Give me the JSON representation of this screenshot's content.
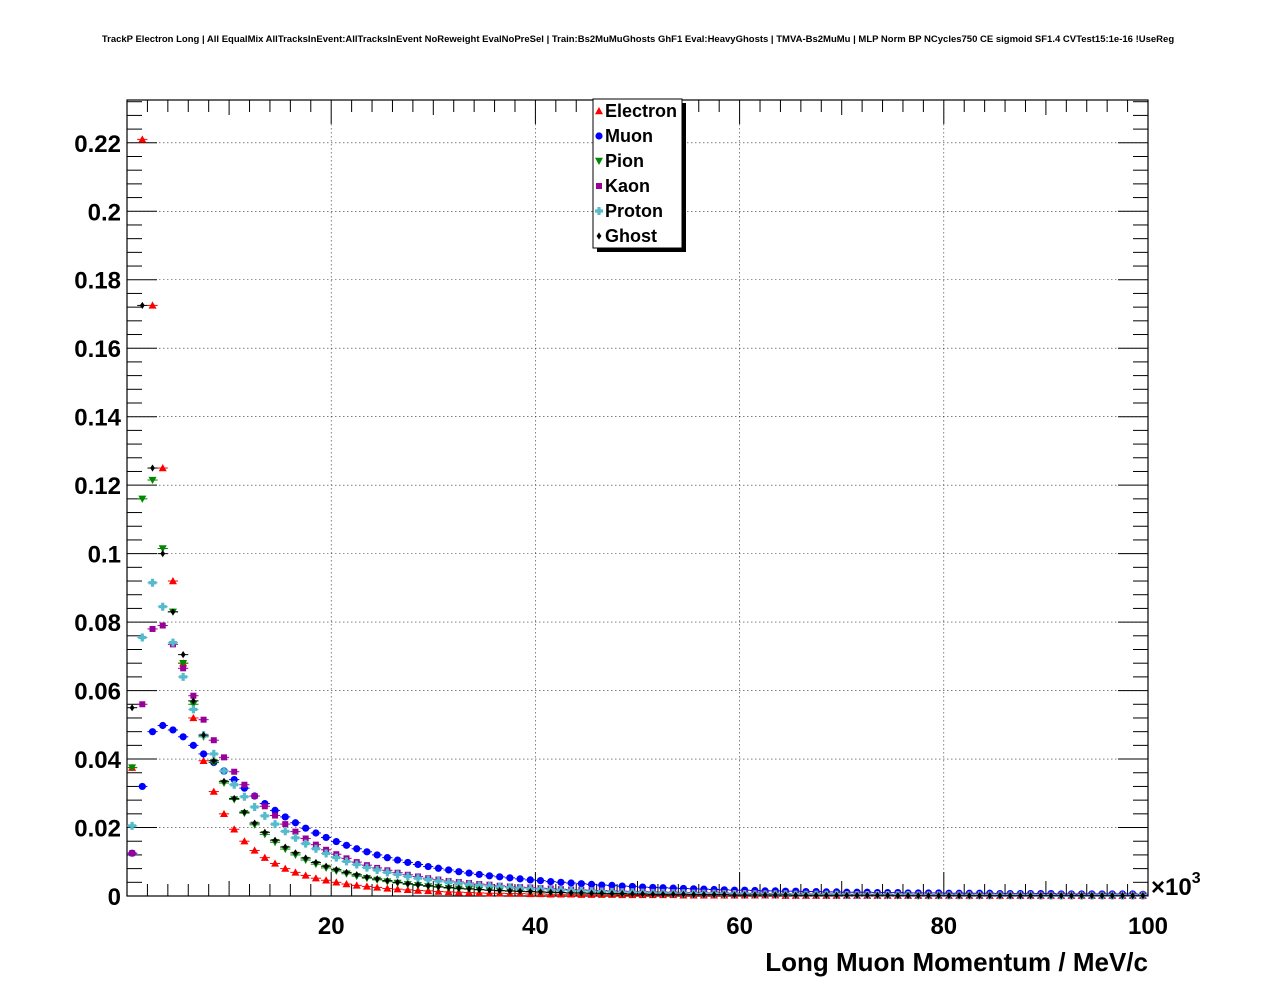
{
  "chart_data": {
    "type": "scatter",
    "title": "TrackP Electron Long | All EqualMix AllTracksInEvent:AllTracksInEvent NoReweight EvalNoPreSel | Train:Bs2MuMuGhosts GhF1 Eval:HeavyGhosts | TMVA-Bs2MuMu | MLP Norm BP NCycles750 CE sigmoid SF1.4 CVTest15:1e-16 !UseReg",
    "xlabel": "Long Muon Momentum / MeV/c",
    "ylabel": "",
    "x_multiplier_label": "×10",
    "x_multiplier_exp": "3",
    "xlim": [
      0,
      100
    ],
    "ylim": [
      0,
      0.2325
    ],
    "x_ticks": [
      20,
      40,
      60,
      80,
      100
    ],
    "x_tick_labels": [
      "20",
      "40",
      "60",
      "80",
      "100"
    ],
    "y_ticks": [
      0,
      0.02,
      0.04,
      0.06,
      0.08,
      0.1,
      0.12,
      0.14,
      0.16,
      0.18,
      0.2,
      0.22
    ],
    "y_tick_labels": [
      "0",
      "0.02",
      "0.04",
      "0.06",
      "0.08",
      "0.1",
      "0.12",
      "0.14",
      "0.16",
      "0.18",
      "0.2",
      "0.22"
    ],
    "grid": true,
    "legend_position": "top-center",
    "x": [
      0.5,
      1.5,
      2.5,
      3.5,
      4.5,
      5.5,
      6.5,
      7.5,
      8.5,
      9.5,
      10.5,
      11.5,
      12.5,
      13.5,
      14.5,
      15.5,
      16.5,
      17.5,
      18.5,
      19.5,
      20.5,
      21.5,
      22.5,
      23.5,
      24.5,
      25.5,
      26.5,
      27.5,
      28.5,
      29.5,
      30.5,
      31.5,
      32.5,
      33.5,
      34.5,
      35.5,
      36.5,
      37.5,
      38.5,
      39.5,
      40.5,
      41.5,
      42.5,
      43.5,
      44.5,
      45.5,
      46.5,
      47.5,
      48.5,
      49.5,
      50.5,
      51.5,
      52.5,
      53.5,
      54.5,
      55.5,
      56.5,
      57.5,
      58.5,
      59.5,
      60.5,
      61.5,
      62.5,
      63.5,
      64.5,
      65.5,
      66.5,
      67.5,
      68.5,
      69.5,
      70.5,
      71.5,
      72.5,
      73.5,
      74.5,
      75.5,
      76.5,
      77.5,
      78.5,
      79.5,
      80.5,
      81.5,
      82.5,
      83.5,
      84.5,
      85.5,
      86.5,
      87.5,
      88.5,
      89.5,
      90.5,
      91.5,
      92.5,
      93.5,
      94.5,
      95.5,
      96.5,
      97.5,
      98.5,
      99.5
    ],
    "series": [
      {
        "name": "Electron",
        "color": "#ff0000",
        "marker": "triangle-up",
        "values": [
          0.0375,
          0.221,
          0.1725,
          0.125,
          0.092,
          0.068,
          0.052,
          0.0395,
          0.0305,
          0.024,
          0.0195,
          0.016,
          0.0133,
          0.0112,
          0.0095,
          0.008,
          0.0069,
          0.006,
          0.0052,
          0.0046,
          0.004,
          0.0035,
          0.0031,
          0.0028,
          0.0025,
          0.0022,
          0.002,
          0.0018,
          0.0016,
          0.0015,
          0.0013,
          0.0012,
          0.0011,
          0.001,
          0.0009,
          0.0008,
          0.0008,
          0.0007,
          0.0007,
          0.0006,
          0.0006,
          0.0005,
          0.0005,
          0.0005,
          0.0004,
          0.0004,
          0.0004,
          0.0004,
          0.0003,
          0.0003,
          0.0003,
          0.0003,
          0.0003,
          0.0003,
          0.0002,
          0.0002,
          0.0002,
          0.0002,
          0.0002,
          0.0002,
          0.0002,
          0.0002,
          0.0002,
          0.0002,
          0.0001,
          0.0001,
          0.0001,
          0.0001,
          0.0001,
          0.0001,
          0.0001,
          0.0001,
          0.0001,
          0.0001,
          0.0001,
          0.0001,
          0.0001,
          0.0001,
          0.0001,
          0.0001,
          0.0001,
          0.0001,
          0.0001,
          0.0001,
          0.0001,
          0.0001,
          0.0001,
          0.0001,
          0.0001,
          0.0001,
          0.0001,
          0.0001,
          0.0001,
          0.0001,
          0.0001,
          0.0001,
          0.0001,
          0.0001,
          0.0001,
          0.0001
        ]
      },
      {
        "name": "Muon",
        "color": "#0000ff",
        "marker": "circle",
        "values": [
          0.0125,
          0.032,
          0.048,
          0.0498,
          0.0485,
          0.0465,
          0.044,
          0.0415,
          0.039,
          0.0365,
          0.034,
          0.0315,
          0.0292,
          0.027,
          0.025,
          0.0231,
          0.0214,
          0.0198,
          0.0184,
          0.0171,
          0.0159,
          0.0148,
          0.0138,
          0.0129,
          0.012,
          0.0112,
          0.0105,
          0.0098,
          0.0092,
          0.0086,
          0.0081,
          0.0076,
          0.0071,
          0.0067,
          0.0063,
          0.0059,
          0.0056,
          0.0053,
          0.005,
          0.0047,
          0.0045,
          0.0042,
          0.004,
          0.0038,
          0.0036,
          0.0034,
          0.0032,
          0.0031,
          0.0029,
          0.0028,
          0.0026,
          0.0025,
          0.0024,
          0.0023,
          0.0022,
          0.0021,
          0.002,
          0.0019,
          0.0018,
          0.0017,
          0.0017,
          0.0016,
          0.0015,
          0.0015,
          0.0014,
          0.0014,
          0.0013,
          0.0013,
          0.0012,
          0.0012,
          0.0011,
          0.0011,
          0.0011,
          0.001,
          0.001,
          0.001,
          0.0009,
          0.0009,
          0.0009,
          0.0009,
          0.0008,
          0.0008,
          0.0008,
          0.0008,
          0.0008,
          0.0007,
          0.0007,
          0.0007,
          0.0007,
          0.0007,
          0.0007,
          0.0006,
          0.0006,
          0.0006,
          0.0006,
          0.0006,
          0.0006,
          0.0006,
          0.0006,
          0.0005
        ]
      },
      {
        "name": "Pion",
        "color": "#008800",
        "marker": "triangle-down",
        "values": [
          0.0375,
          0.116,
          0.1215,
          0.1015,
          0.083,
          0.068,
          0.056,
          0.0465,
          0.039,
          0.033,
          0.0282,
          0.0242,
          0.0208,
          0.018,
          0.0157,
          0.0137,
          0.012,
          0.0105,
          0.0093,
          0.0082,
          0.0073,
          0.0065,
          0.0058,
          0.0052,
          0.0047,
          0.0042,
          0.0038,
          0.0034,
          0.0031,
          0.0028,
          0.0026,
          0.0023,
          0.0021,
          0.002,
          0.0018,
          0.0017,
          0.0015,
          0.0014,
          0.0013,
          0.0012,
          0.0011,
          0.001,
          0.001,
          0.0009,
          0.0008,
          0.0008,
          0.0007,
          0.0007,
          0.0006,
          0.0006,
          0.0006,
          0.0005,
          0.0005,
          0.0005,
          0.0004,
          0.0004,
          0.0004,
          0.0004,
          0.0003,
          0.0003,
          0.0003,
          0.0003,
          0.0003,
          0.0003,
          0.0002,
          0.0002,
          0.0002,
          0.0002,
          0.0002,
          0.0002,
          0.0002,
          0.0002,
          0.0002,
          0.0002,
          0.0001,
          0.0001,
          0.0001,
          0.0001,
          0.0001,
          0.0001,
          0.0001,
          0.0001,
          0.0001,
          0.0001,
          0.0001,
          0.0001,
          0.0001,
          0.0001,
          0.0001,
          0.0001,
          0.0001,
          0.0001,
          0.0001,
          0.0001,
          0.0001,
          0.0001,
          0.0001,
          0.0001,
          0.0001,
          0.0001
        ]
      },
      {
        "name": "Kaon",
        "color": "#990099",
        "marker": "square",
        "values": [
          0.0125,
          0.056,
          0.078,
          0.079,
          0.0735,
          0.0665,
          0.0585,
          0.0515,
          0.0455,
          0.0405,
          0.0363,
          0.0325,
          0.0292,
          0.0262,
          0.0235,
          0.021,
          0.0188,
          0.0168,
          0.015,
          0.0135,
          0.0122,
          0.011,
          0.0099,
          0.009,
          0.0082,
          0.0075,
          0.0068,
          0.0062,
          0.0057,
          0.0052,
          0.0048,
          0.0044,
          0.0041,
          0.0038,
          0.0035,
          0.0033,
          0.003,
          0.0028,
          0.0026,
          0.0025,
          0.0023,
          0.0022,
          0.002,
          0.0019,
          0.0018,
          0.0017,
          0.0016,
          0.0015,
          0.0014,
          0.0013,
          0.0013,
          0.0012,
          0.0011,
          0.0011,
          0.001,
          0.001,
          0.0009,
          0.0009,
          0.0009,
          0.0008,
          0.0008,
          0.0008,
          0.0007,
          0.0007,
          0.0007,
          0.0006,
          0.0006,
          0.0006,
          0.0006,
          0.0006,
          0.0005,
          0.0005,
          0.0005,
          0.0005,
          0.0005,
          0.0004,
          0.0004,
          0.0004,
          0.0004,
          0.0004,
          0.0004,
          0.0004,
          0.0004,
          0.0003,
          0.0003,
          0.0003,
          0.0003,
          0.0003,
          0.0003,
          0.0003,
          0.0003,
          0.0003,
          0.0003,
          0.0003,
          0.0002,
          0.0002,
          0.0002,
          0.0002,
          0.0002,
          0.0002
        ]
      },
      {
        "name": "Proton",
        "color": "#55bbcc",
        "marker": "cross",
        "values": [
          0.0205,
          0.0755,
          0.0915,
          0.0845,
          0.074,
          0.064,
          0.0545,
          0.047,
          0.0415,
          0.0365,
          0.0325,
          0.029,
          0.026,
          0.0234,
          0.021,
          0.0189,
          0.017,
          0.0153,
          0.0138,
          0.0124,
          0.0112,
          0.0101,
          0.0092,
          0.0083,
          0.0076,
          0.0069,
          0.0063,
          0.0057,
          0.0052,
          0.0048,
          0.0044,
          0.004,
          0.0037,
          0.0034,
          0.0031,
          0.0029,
          0.0027,
          0.0025,
          0.0023,
          0.0021,
          0.002,
          0.0018,
          0.0017,
          0.0016,
          0.0015,
          0.0014,
          0.0013,
          0.0012,
          0.0011,
          0.0011,
          0.001,
          0.0009,
          0.0009,
          0.0008,
          0.0008,
          0.0007,
          0.0007,
          0.0007,
          0.0006,
          0.0006,
          0.0006,
          0.0005,
          0.0005,
          0.0005,
          0.0005,
          0.0004,
          0.0004,
          0.0004,
          0.0004,
          0.0004,
          0.0003,
          0.0003,
          0.0003,
          0.0003,
          0.0003,
          0.0003,
          0.0003,
          0.0002,
          0.0002,
          0.0002,
          0.0002,
          0.0002,
          0.0002,
          0.0002,
          0.0002,
          0.0002,
          0.0002,
          0.0002,
          0.0002,
          0.0001,
          0.0001,
          0.0001,
          0.0001,
          0.0001,
          0.0001,
          0.0001,
          0.0001,
          0.0001,
          0.0001,
          0.0001
        ]
      },
      {
        "name": "Ghost",
        "color": "#000000",
        "marker": "diamond",
        "values": [
          0.055,
          0.1725,
          0.125,
          0.1,
          0.083,
          0.0705,
          0.057,
          0.047,
          0.0395,
          0.0335,
          0.0285,
          0.0245,
          0.0213,
          0.0186,
          0.0163,
          0.0143,
          0.0126,
          0.0111,
          0.0098,
          0.0087,
          0.0077,
          0.0069,
          0.0062,
          0.0055,
          0.005,
          0.0045,
          0.004,
          0.0036,
          0.0033,
          0.003,
          0.0027,
          0.0025,
          0.0023,
          0.0021,
          0.0019,
          0.0017,
          0.0016,
          0.0015,
          0.0014,
          0.0013,
          0.0012,
          0.0011,
          0.001,
          0.0009,
          0.0009,
          0.0008,
          0.0008,
          0.0007,
          0.0007,
          0.0006,
          0.0006,
          0.0005,
          0.0005,
          0.0005,
          0.0005,
          0.0004,
          0.0004,
          0.0004,
          0.0004,
          0.0003,
          0.0003,
          0.0003,
          0.0003,
          0.0003,
          0.0003,
          0.0002,
          0.0002,
          0.0002,
          0.0002,
          0.0002,
          0.0002,
          0.0002,
          0.0002,
          0.0002,
          0.0002,
          0.0001,
          0.0001,
          0.0001,
          0.0001,
          0.0001,
          0.0001,
          0.0001,
          0.0001,
          0.0001,
          0.0001,
          0.0001,
          0.0001,
          0.0001,
          0.0001,
          0.0001,
          0.0001,
          0.0001,
          0.0001,
          0.0001,
          0.0001,
          0.0001,
          0.0001,
          0.0001,
          0.0001,
          0.0001
        ]
      }
    ]
  }
}
